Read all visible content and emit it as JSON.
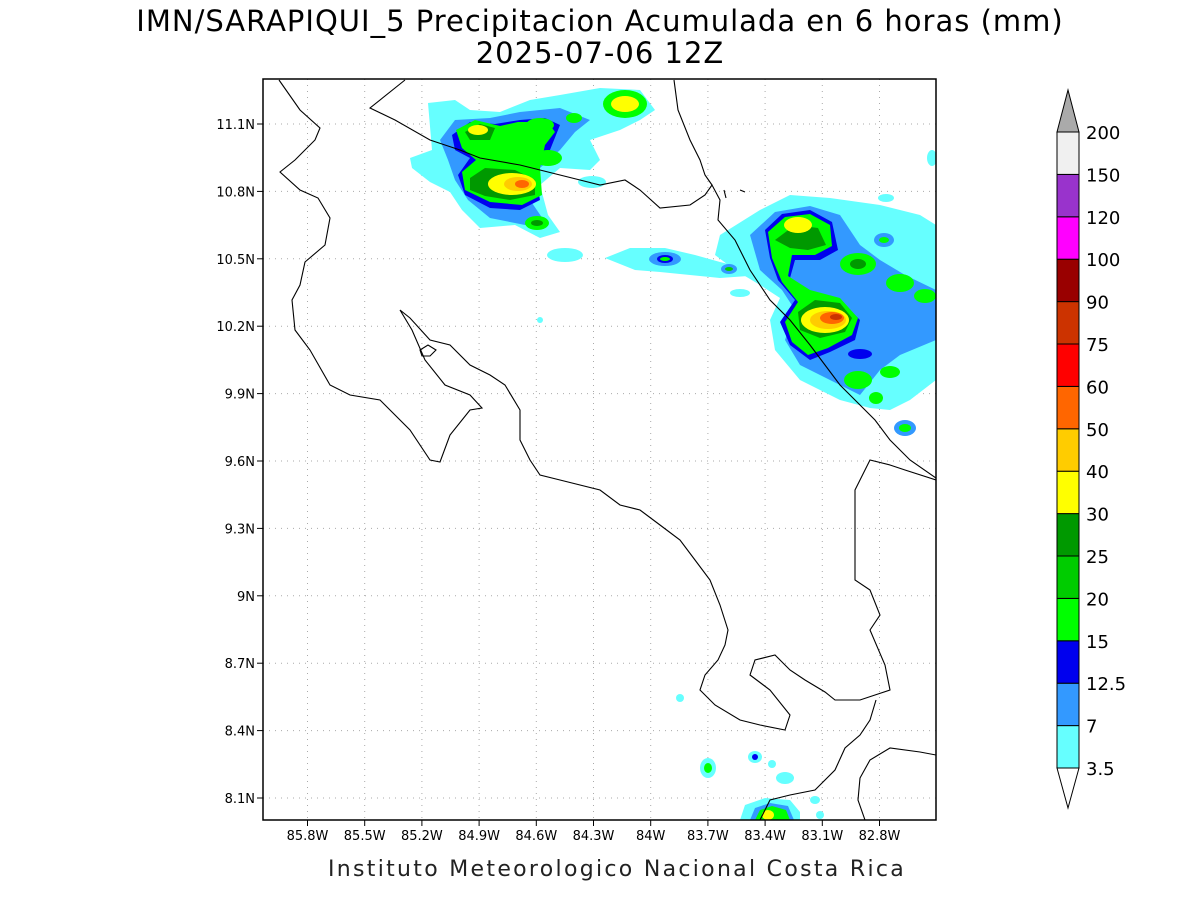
{
  "title": {
    "line1": "IMN/SARAPIQUI_5 Precipitacion Acumulada en 6 horas (mm)",
    "line2": "2025-07-06 12Z"
  },
  "footer": "Instituto Meteorologico Nacional Costa Rica",
  "map": {
    "lon_ticks": [
      "85.8W",
      "85.5W",
      "85.2W",
      "84.9W",
      "84.6W",
      "84.3W",
      "84W",
      "83.7W",
      "83.4W",
      "83.1W",
      "82.8W"
    ],
    "lat_ticks": [
      "11.1N",
      "10.8N",
      "10.5N",
      "10.2N",
      "9.9N",
      "9.6N",
      "9.3N",
      "9N",
      "8.7N",
      "8.4N",
      "8.1N"
    ],
    "gridlines": true
  },
  "colorbar": {
    "levels": [
      "3.5",
      "7",
      "12.5",
      "15",
      "20",
      "25",
      "30",
      "40",
      "50",
      "60",
      "75",
      "90",
      "100",
      "120",
      "150",
      "200"
    ],
    "colors": [
      "#66ffff",
      "#3399ff",
      "#0000ee",
      "#00ff00",
      "#00cc00",
      "#009900",
      "#ffff00",
      "#ffcc00",
      "#ff6600",
      "#ff0000",
      "#cc3300",
      "#990000",
      "#ff00ff",
      "#9933cc",
      "#f0f0f0",
      "#aaaaaa"
    ]
  }
}
